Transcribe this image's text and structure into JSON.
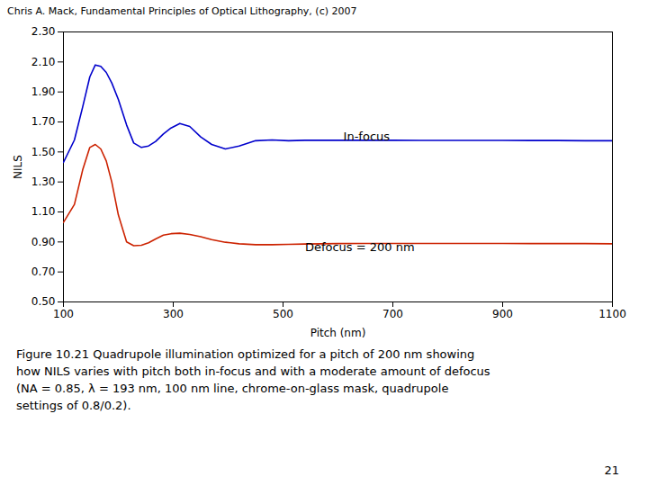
{
  "chart_data": {
    "type": "line",
    "title": "Chris A. Mack, Fundamental Principles of Optical Lithography, (c) 2007",
    "xlabel": "Pitch (nm)",
    "ylabel": "NILS",
    "x": [
      100,
      120,
      135,
      148,
      158,
      168,
      178,
      188,
      200,
      215,
      228,
      242,
      255,
      268,
      282,
      296,
      312,
      330,
      350,
      370,
      395,
      420,
      450,
      480,
      510,
      540,
      570,
      600,
      650,
      700,
      750,
      800,
      850,
      900,
      950,
      1000,
      1050,
      1100
    ],
    "series": [
      {
        "name": "In-focus",
        "color": "#0000cc",
        "values": [
          1.43,
          1.58,
          1.8,
          2.0,
          2.08,
          2.07,
          2.03,
          1.96,
          1.85,
          1.68,
          1.56,
          1.53,
          1.54,
          1.57,
          1.62,
          1.66,
          1.69,
          1.67,
          1.6,
          1.55,
          1.52,
          1.54,
          1.575,
          1.58,
          1.575,
          1.578,
          1.578,
          1.578,
          1.578,
          1.578,
          1.577,
          1.577,
          1.577,
          1.577,
          1.576,
          1.576,
          1.575,
          1.575
        ]
      },
      {
        "name": "Defocus = 200 nm",
        "color": "#cc2200",
        "values": [
          1.03,
          1.15,
          1.38,
          1.53,
          1.55,
          1.52,
          1.44,
          1.3,
          1.08,
          0.9,
          0.875,
          0.878,
          0.895,
          0.92,
          0.945,
          0.955,
          0.958,
          0.95,
          0.935,
          0.915,
          0.898,
          0.888,
          0.882,
          0.882,
          0.884,
          0.886,
          0.888,
          0.889,
          0.89,
          0.89,
          0.89,
          0.89,
          0.89,
          0.89,
          0.889,
          0.889,
          0.889,
          0.888
        ]
      }
    ],
    "xlim": [
      100,
      1100
    ],
    "ylim": [
      0.5,
      2.3
    ],
    "xticks": [
      100,
      300,
      500,
      700,
      900,
      1100
    ],
    "yticks": [
      {
        "value": 0.5,
        "label": "0.50"
      },
      {
        "value": 0.7,
        "label": "0.70"
      },
      {
        "value": 0.9,
        "label": "0.90"
      },
      {
        "value": 1.1,
        "label": "1.10"
      },
      {
        "value": 1.3,
        "label": "1.30"
      },
      {
        "value": 1.5,
        "label": "1.50"
      },
      {
        "value": 1.7,
        "label": "1.70"
      },
      {
        "value": 1.9,
        "label": "1.90"
      },
      {
        "value": 2.1,
        "label": "2.10"
      },
      {
        "value": 2.3,
        "label": "2.30"
      }
    ],
    "grid": false,
    "annotations": [
      {
        "text": "In-focus",
        "x": 610,
        "y": 1.605
      },
      {
        "text": "Defocus = 200 nm",
        "x": 540,
        "y": 0.862
      }
    ],
    "caption": "Figure 10.21  Quadrupole illumination optimized for a pitch of 200 nm showing\nhow NILS varies with pitch both in-focus and with a moderate amount of defocus\n(NA = 0.85, λ = 193 nm, 100 nm line, chrome-on-glass mask, quadrupole\nsettings of 0.8/0.2).",
    "page_number": "21"
  }
}
